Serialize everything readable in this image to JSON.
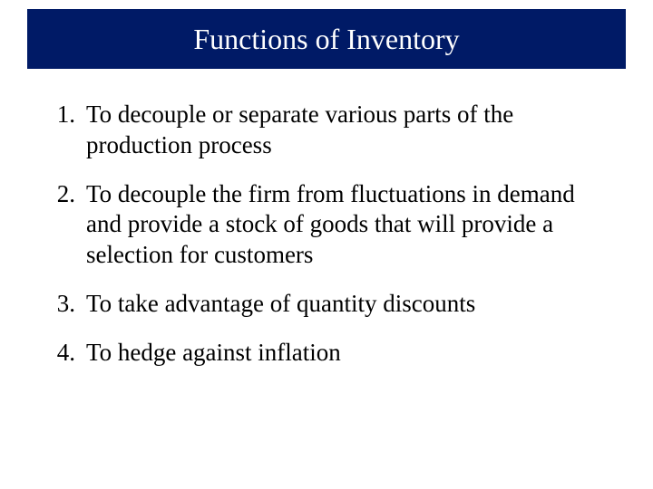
{
  "slide": {
    "title": "Functions of Inventory",
    "title_bar_color": "#001a66",
    "title_text_color": "#ffffff",
    "title_fontsize": 32,
    "body_fontsize": 27,
    "body_color": "#000000",
    "background_color": "#ffffff",
    "items": [
      {
        "number": "1.",
        "text": "To decouple or separate various parts of the production process"
      },
      {
        "number": "2.",
        "text": "To decouple the firm from fluctuations in demand and provide a stock of goods that will provide a selection for customers"
      },
      {
        "number": "3.",
        "text": "To take advantage of quantity discounts"
      },
      {
        "number": "4.",
        "text": "To hedge against inflation"
      }
    ]
  }
}
